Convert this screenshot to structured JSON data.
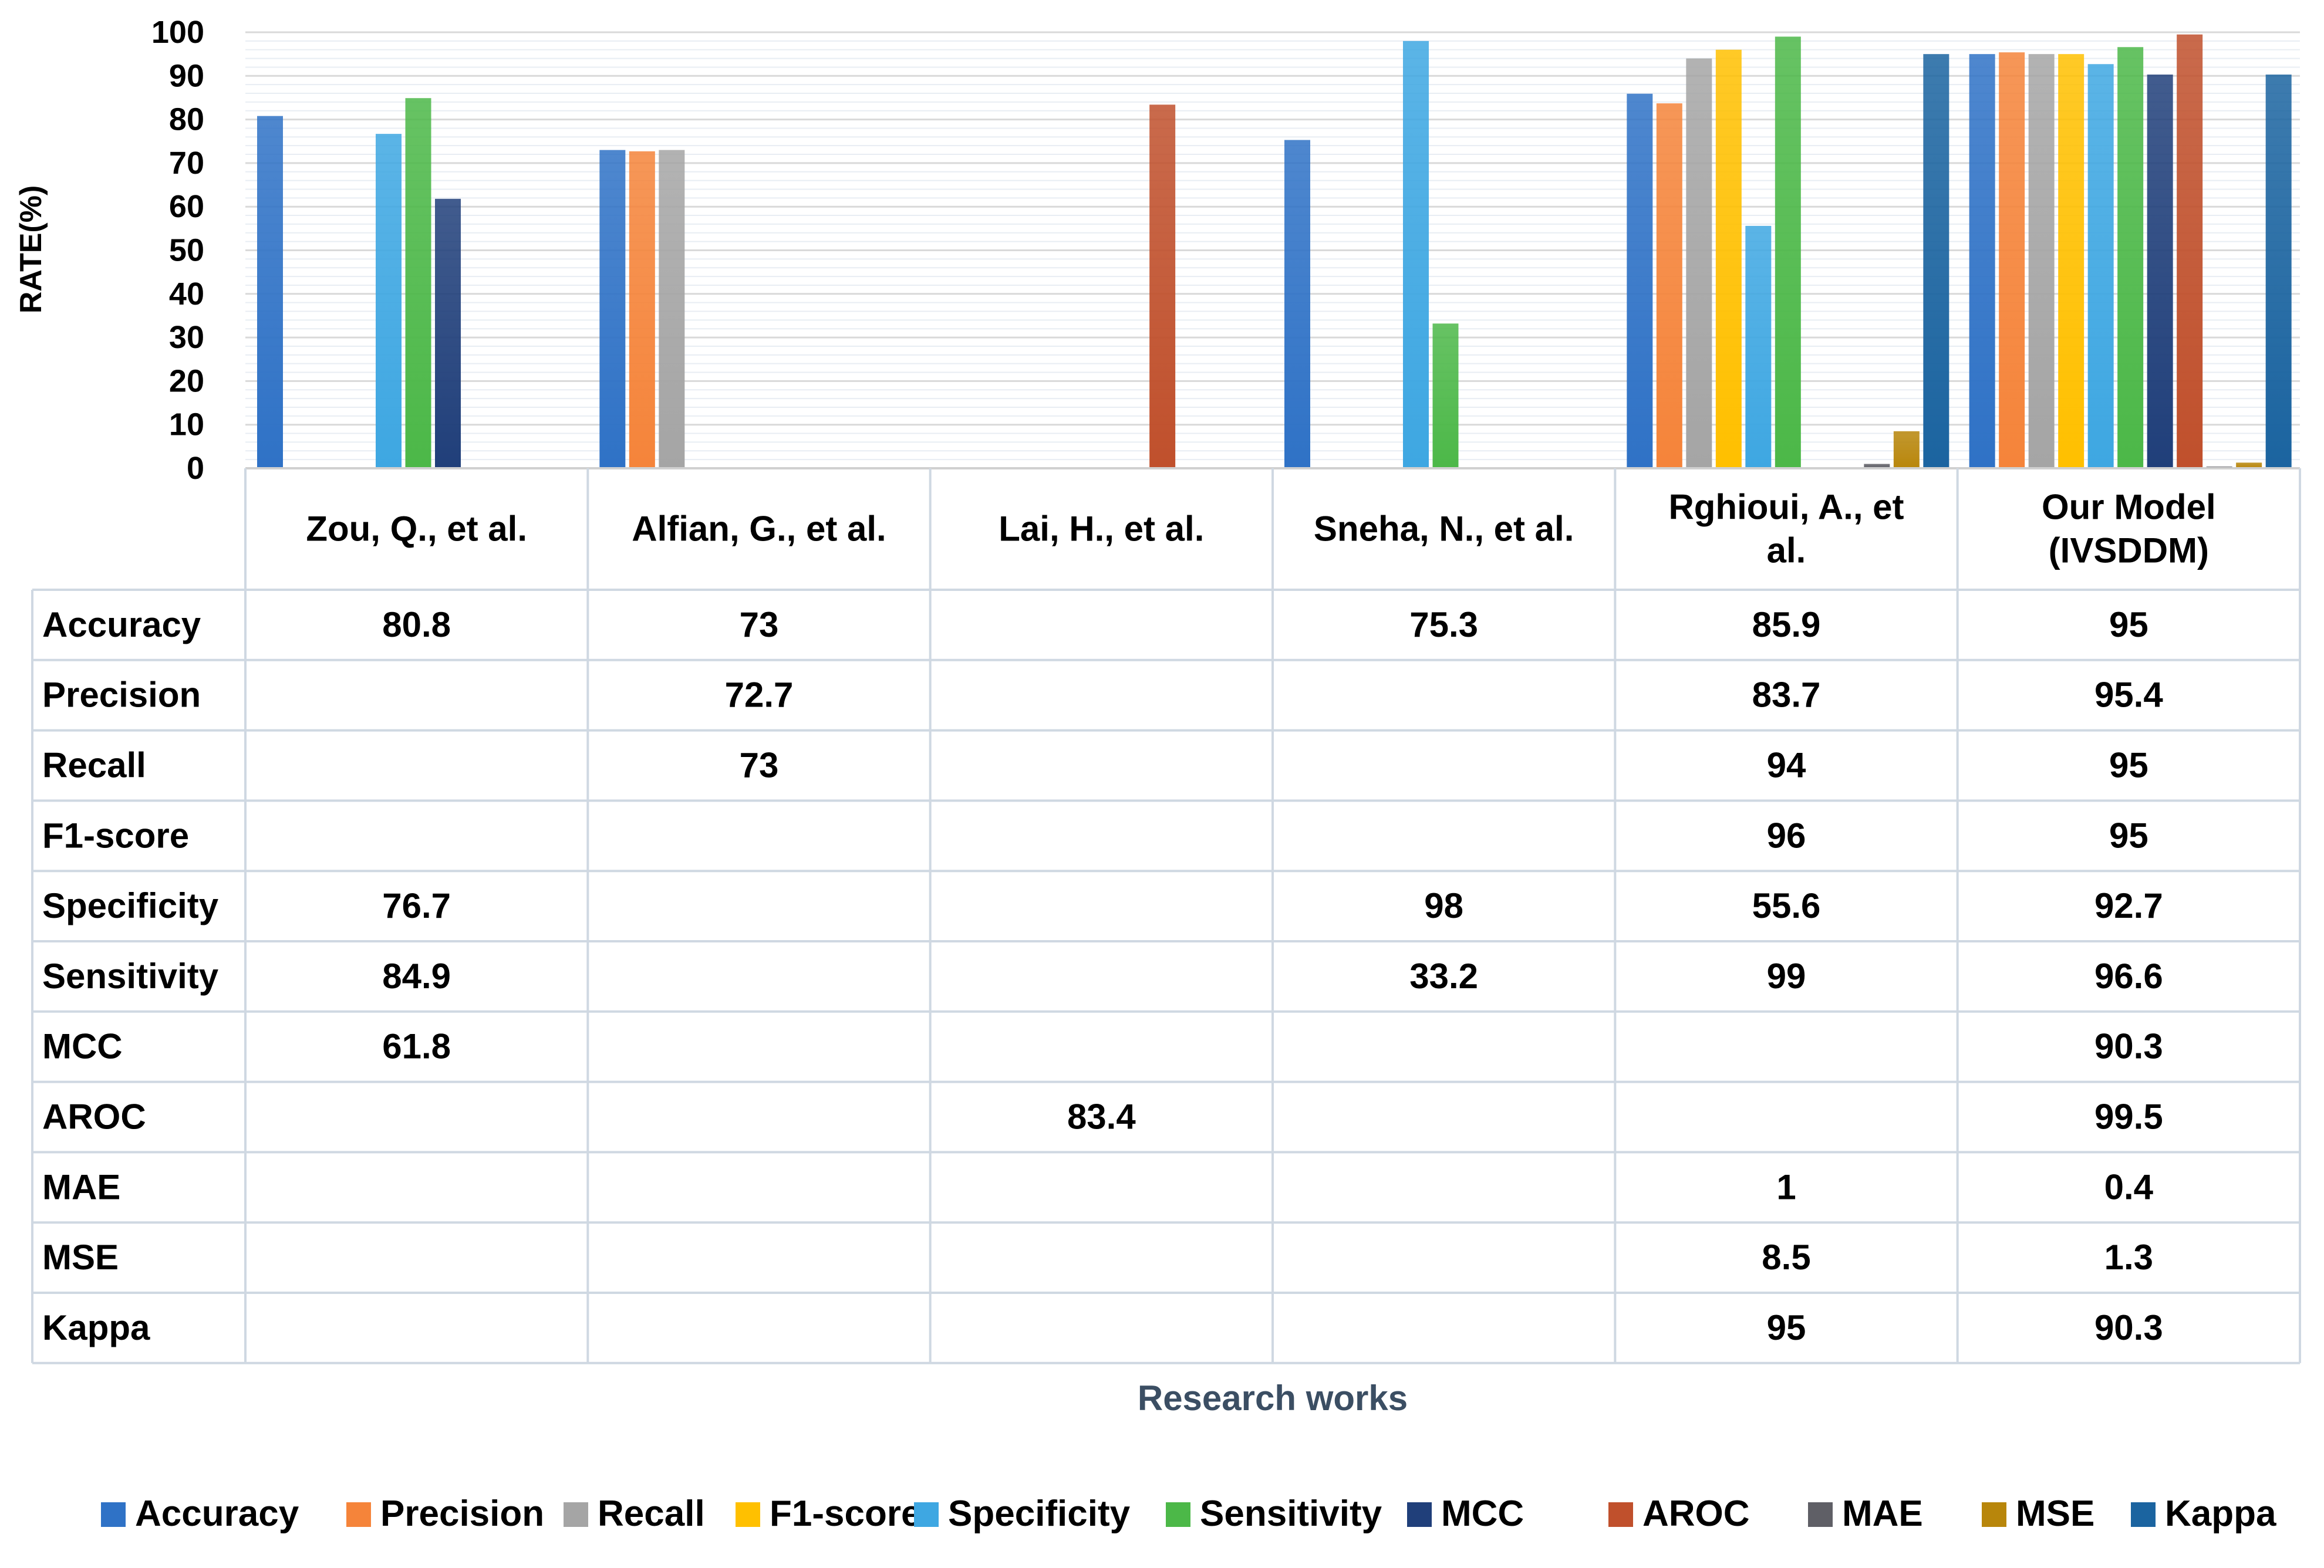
{
  "chart_data": {
    "type": "bar",
    "title": "",
    "xlabel": "Research works",
    "ylabel": "RATE(%)",
    "ylim": [
      0,
      100
    ],
    "yticks": [
      "0",
      "10",
      "20",
      "30",
      "40",
      "50",
      "60",
      "70",
      "80",
      "90",
      "100"
    ],
    "categories": [
      "Zou, Q., et al.",
      "Alfian, G., et al.",
      "Lai, H., et al.",
      "Sneha, N., et al.",
      "Rghioui, A., et al.",
      "Our Model (IVSDDM)"
    ],
    "category_lines": [
      [
        "Zou, Q., et al."
      ],
      [
        "Alfian, G., et al."
      ],
      [
        "Lai, H., et al."
      ],
      [
        "Sneha, N., et al."
      ],
      [
        "Rghioui, A., et",
        "al."
      ],
      [
        "Our Model",
        "(IVSDDM)"
      ]
    ],
    "legend_position": "bottom",
    "series": [
      {
        "name": "Accuracy",
        "color": "#2f72c6",
        "values": [
          80.8,
          73,
          null,
          75.3,
          85.9,
          95
        ],
        "labels": [
          "80.8",
          "73",
          "",
          "75.3",
          "85.9",
          "95"
        ]
      },
      {
        "name": "Precision",
        "color": "#f5843a",
        "values": [
          null,
          72.7,
          null,
          null,
          83.7,
          95.4
        ],
        "labels": [
          "",
          "72.7",
          "",
          "",
          "83.7",
          "95.4"
        ]
      },
      {
        "name": "Recall",
        "color": "#a5a5a5",
        "values": [
          null,
          73,
          null,
          null,
          94,
          95
        ],
        "labels": [
          "",
          "73",
          "",
          "",
          "94",
          "95"
        ]
      },
      {
        "name": "F1-score",
        "color": "#ffc000",
        "values": [
          null,
          null,
          null,
          null,
          96,
          95
        ],
        "labels": [
          "",
          "",
          "",
          "",
          "96",
          "95"
        ]
      },
      {
        "name": "Specificity",
        "color": "#3ea7e2",
        "values": [
          76.7,
          null,
          null,
          98,
          55.6,
          92.7
        ],
        "labels": [
          "76.7",
          "",
          "",
          "98",
          "55.6",
          "92.7"
        ]
      },
      {
        "name": "Sensitivity",
        "color": "#4cb848",
        "values": [
          84.9,
          null,
          null,
          33.2,
          99,
          96.6
        ],
        "labels": [
          "84.9",
          "",
          "",
          "33.2",
          "99",
          "96.6"
        ]
      },
      {
        "name": "MCC",
        "color": "#203f7a",
        "values": [
          61.8,
          null,
          null,
          null,
          null,
          90.3
        ],
        "labels": [
          "61.8",
          "",
          "",
          "",
          "",
          "90.3"
        ]
      },
      {
        "name": "AROC",
        "color": "#c0502c",
        "values": [
          null,
          null,
          83.4,
          null,
          null,
          99.5
        ],
        "labels": [
          "",
          "",
          "83.4",
          "",
          "",
          "99.5"
        ]
      },
      {
        "name": "MAE",
        "color": "#5f5f66",
        "values": [
          null,
          null,
          null,
          null,
          1,
          0.4
        ],
        "labels": [
          "",
          "",
          "",
          "",
          "1",
          "0.4"
        ]
      },
      {
        "name": "MSE",
        "color": "#b8860b",
        "values": [
          null,
          null,
          null,
          null,
          8.5,
          1.3
        ],
        "labels": [
          "",
          "",
          "",
          "",
          "8.5",
          "1.3"
        ]
      },
      {
        "name": "Kappa",
        "color": "#1b64a0",
        "values": [
          null,
          null,
          null,
          null,
          95,
          90.3
        ],
        "labels": [
          "",
          "",
          "",
          "",
          "95",
          "90.3"
        ]
      }
    ]
  }
}
